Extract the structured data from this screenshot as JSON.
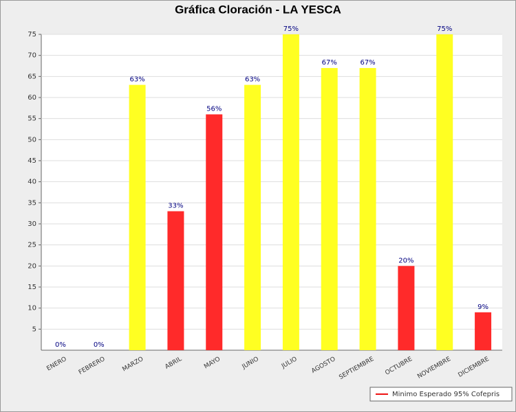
{
  "chart_data": {
    "type": "bar",
    "title": "Gráfica Cloración - LA YESCA",
    "categories": [
      "ENERO",
      "FEBRERO",
      "MARZO",
      "ABRIL",
      "MAYO",
      "JUNIO",
      "JULIO",
      "AGOSTO",
      "SEPTIEMBRE",
      "OCTUBRE",
      "NOVIEMBRE",
      "DICIEMBRE"
    ],
    "values": [
      0,
      0,
      63,
      33,
      56,
      63,
      75,
      67,
      67,
      20,
      75,
      9
    ],
    "value_labels": [
      "0%",
      "0%",
      "63%",
      "33%",
      "56%",
      "63%",
      "75%",
      "67%",
      "67%",
      "20%",
      "75%",
      "9%"
    ],
    "colors": [
      "#ff2a2a",
      "#ff2a2a",
      "#ffff22",
      "#ff2a2a",
      "#ff2a2a",
      "#ffff22",
      "#ffff22",
      "#ffff22",
      "#ffff22",
      "#ff2a2a",
      "#ffff22",
      "#ff2a2a"
    ],
    "ylim": [
      0,
      75
    ],
    "yticks": [
      5,
      10,
      15,
      20,
      25,
      30,
      35,
      40,
      45,
      50,
      55,
      60,
      65,
      70,
      75
    ],
    "grid": true,
    "legend": {
      "label": "Minimo Esperado 95% Cofepris",
      "color": "#ee1111",
      "position": "bottom-right"
    }
  }
}
